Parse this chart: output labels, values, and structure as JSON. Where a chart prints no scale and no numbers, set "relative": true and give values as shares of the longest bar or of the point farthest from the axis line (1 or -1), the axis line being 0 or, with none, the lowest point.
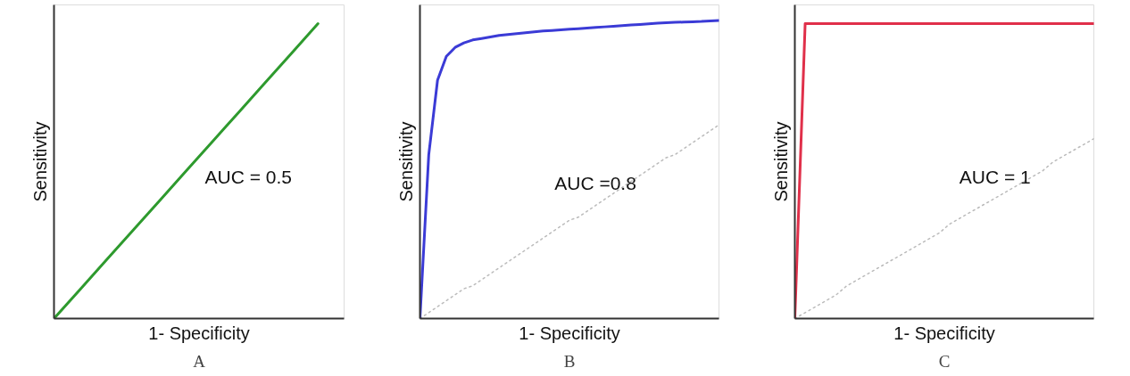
{
  "chart_data": [
    {
      "type": "line",
      "relative": true,
      "xlabel": "1- Specificity",
      "ylabel": "Sensitivity",
      "title": "A",
      "annotations": [
        "AUC = 0.5"
      ],
      "categories": [
        null,
        null,
        null,
        null,
        null,
        null,
        null,
        null,
        null,
        null,
        null
      ],
      "series": [
        {
          "color": "#2e9a2e",
          "values": [
            0,
            0.1,
            0.2,
            0.3,
            0.4,
            0.5,
            0.6,
            0.7,
            0.8,
            0.9,
            1
          ]
        }
      ]
    },
    {
      "type": "line",
      "relative": true,
      "xlabel": "1- Specificity",
      "ylabel": "Sensitivity",
      "title": "B",
      "annotations": [
        "AUC =0.8"
      ],
      "categories": [
        null,
        null,
        null,
        null,
        null,
        null,
        null,
        null,
        null,
        null,
        null,
        null,
        null,
        null,
        null,
        null,
        null,
        null,
        null,
        null,
        null,
        null,
        null,
        null,
        null,
        null,
        null,
        null,
        null,
        null,
        null,
        null,
        null,
        null,
        null
      ],
      "series": [
        {
          "color": "#bbbbbb",
          "line_style": "dotted",
          "values": [
            0,
            0.02,
            0.04,
            0.06,
            0.08,
            0.1,
            0.11,
            0.13,
            0.15,
            0.17,
            0.19,
            0.21,
            0.23,
            0.25,
            0.27,
            0.29,
            0.31,
            0.33,
            0.34,
            0.36,
            0.38,
            0.4,
            0.42,
            0.44,
            0.46,
            0.48,
            0.5,
            0.52,
            0.54,
            0.55,
            0.57,
            0.59,
            0.61,
            0.63,
            0.65
          ]
        },
        {
          "color": "#3b3bd6",
          "values": [
            0,
            0.55,
            0.8,
            0.88,
            0.91,
            0.925,
            0.935,
            0.94,
            0.945,
            0.95,
            0.953,
            0.956,
            0.959,
            0.962,
            0.965,
            0.967,
            0.969,
            0.971,
            0.973,
            0.975,
            0.977,
            0.979,
            0.981,
            0.983,
            0.985,
            0.987,
            0.989,
            0.991,
            0.993,
            0.994,
            0.995,
            0.996,
            0.997,
            0.999,
            1
          ]
        }
      ]
    },
    {
      "type": "line",
      "relative": true,
      "xlabel": "1- Specificity",
      "ylabel": "Sensitivity",
      "title": "C",
      "annotations": [
        "AUC = 1"
      ],
      "categories": [
        null,
        null,
        null,
        null,
        null,
        null,
        null,
        null,
        null,
        null,
        null,
        null,
        null,
        null,
        null,
        null,
        null,
        null,
        null,
        null,
        null,
        null,
        null,
        null,
        null,
        null,
        null,
        null,
        null,
        null
      ],
      "series": [
        {
          "color": "#bbbbbb",
          "line_style": "dotted",
          "values": [
            0,
            0.02,
            0.04,
            0.06,
            0.08,
            0.11,
            0.13,
            0.15,
            0.17,
            0.19,
            0.21,
            0.23,
            0.25,
            0.27,
            0.29,
            0.32,
            0.34,
            0.36,
            0.38,
            0.4,
            0.42,
            0.44,
            0.46,
            0.48,
            0.5,
            0.53,
            0.55,
            0.57,
            0.59,
            0.61
          ]
        },
        {
          "color": "#e0304a",
          "values": [
            0,
            1,
            1,
            1,
            1,
            1,
            1,
            1,
            1,
            1,
            1,
            1,
            1,
            1,
            1,
            1,
            1,
            1,
            1,
            1,
            1,
            1,
            1,
            1,
            1,
            1,
            1,
            1,
            1,
            1
          ]
        }
      ]
    }
  ]
}
